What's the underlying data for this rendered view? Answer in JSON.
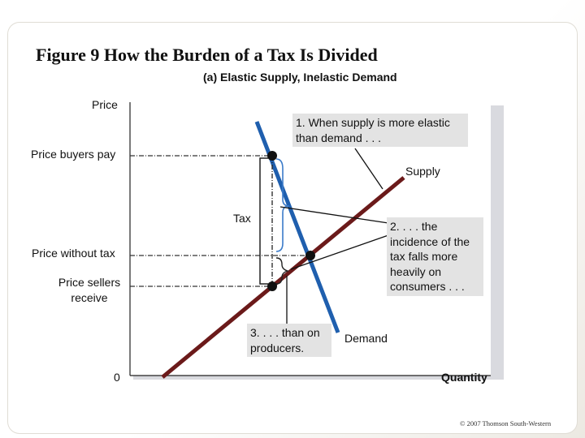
{
  "title": "Figure 9 How the Burden of a Tax Is Divided",
  "subtitle": "(a) Elastic Supply, Inelastic Demand",
  "axes": {
    "y_label": "Price",
    "x_label": "Quantity",
    "origin": "0"
  },
  "price_levels": {
    "buyers_pay": "Price buyers pay",
    "without_tax": "Price without tax",
    "sellers_receive": "Price sellers receive"
  },
  "curves": {
    "supply": "Supply",
    "demand": "Demand",
    "supply_color": "#6b1a1a",
    "demand_color": "#1f5fae"
  },
  "tax_label": "Tax",
  "callouts": {
    "c1": "1. When supply is more elastic than demand . . .",
    "c2": "2. . . . the incidence of the tax falls more heavily on consumers . . .",
    "c3": "3. . . . than on producers."
  },
  "copyright": "© 2007 Thomson South-Western"
}
